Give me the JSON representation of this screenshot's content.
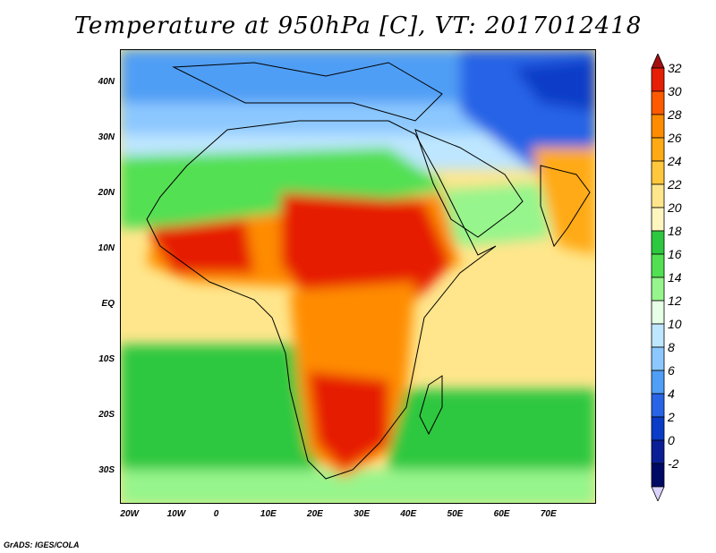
{
  "title": "Temperature at 950hPa [C], VT: 2017012418",
  "credit": "GrADS: IGES/COLA",
  "map": {
    "lon_range": [
      -22,
      80
    ],
    "lat_range": [
      -36,
      46
    ],
    "lat_labels": [
      {
        "lat": 40,
        "text": "40N"
      },
      {
        "lat": 30,
        "text": "30N"
      },
      {
        "lat": 20,
        "text": "20N"
      },
      {
        "lat": 10,
        "text": "10N"
      },
      {
        "lat": 0,
        "text": "EQ"
      },
      {
        "lat": -10,
        "text": "10S"
      },
      {
        "lat": -20,
        "text": "20S"
      },
      {
        "lat": -30,
        "text": "30S"
      }
    ],
    "lon_labels": [
      {
        "lon": -20,
        "text": "20W"
      },
      {
        "lon": -10,
        "text": "10W"
      },
      {
        "lon": 0,
        "text": "0"
      },
      {
        "lon": 10,
        "text": "10E"
      },
      {
        "lon": 20,
        "text": "20E"
      },
      {
        "lon": 30,
        "text": "30E"
      },
      {
        "lon": 40,
        "text": "40E"
      },
      {
        "lon": 50,
        "text": "50E"
      },
      {
        "lon": 60,
        "text": "60E"
      },
      {
        "lon": 70,
        "text": "70E"
      }
    ]
  },
  "colorbar": {
    "levels": [
      "32",
      "30",
      "28",
      "26",
      "24",
      "22",
      "20",
      "18",
      "16",
      "14",
      "12",
      "10",
      "8",
      "6",
      "4",
      "2",
      "0",
      "-2"
    ],
    "colors": [
      "#a50f0f",
      "#e61e05",
      "#ff5a00",
      "#ff8c00",
      "#ffaa14",
      "#ffc83c",
      "#ffe68c",
      "#fff5be",
      "#2ec840",
      "#52e052",
      "#96f58c",
      "#e6ffe6",
      "#bee6ff",
      "#8cc8ff",
      "#509ef5",
      "#2864e6",
      "#0a3cc8",
      "#0a1e96",
      "#000a64",
      "#dcd2ff"
    ]
  }
}
